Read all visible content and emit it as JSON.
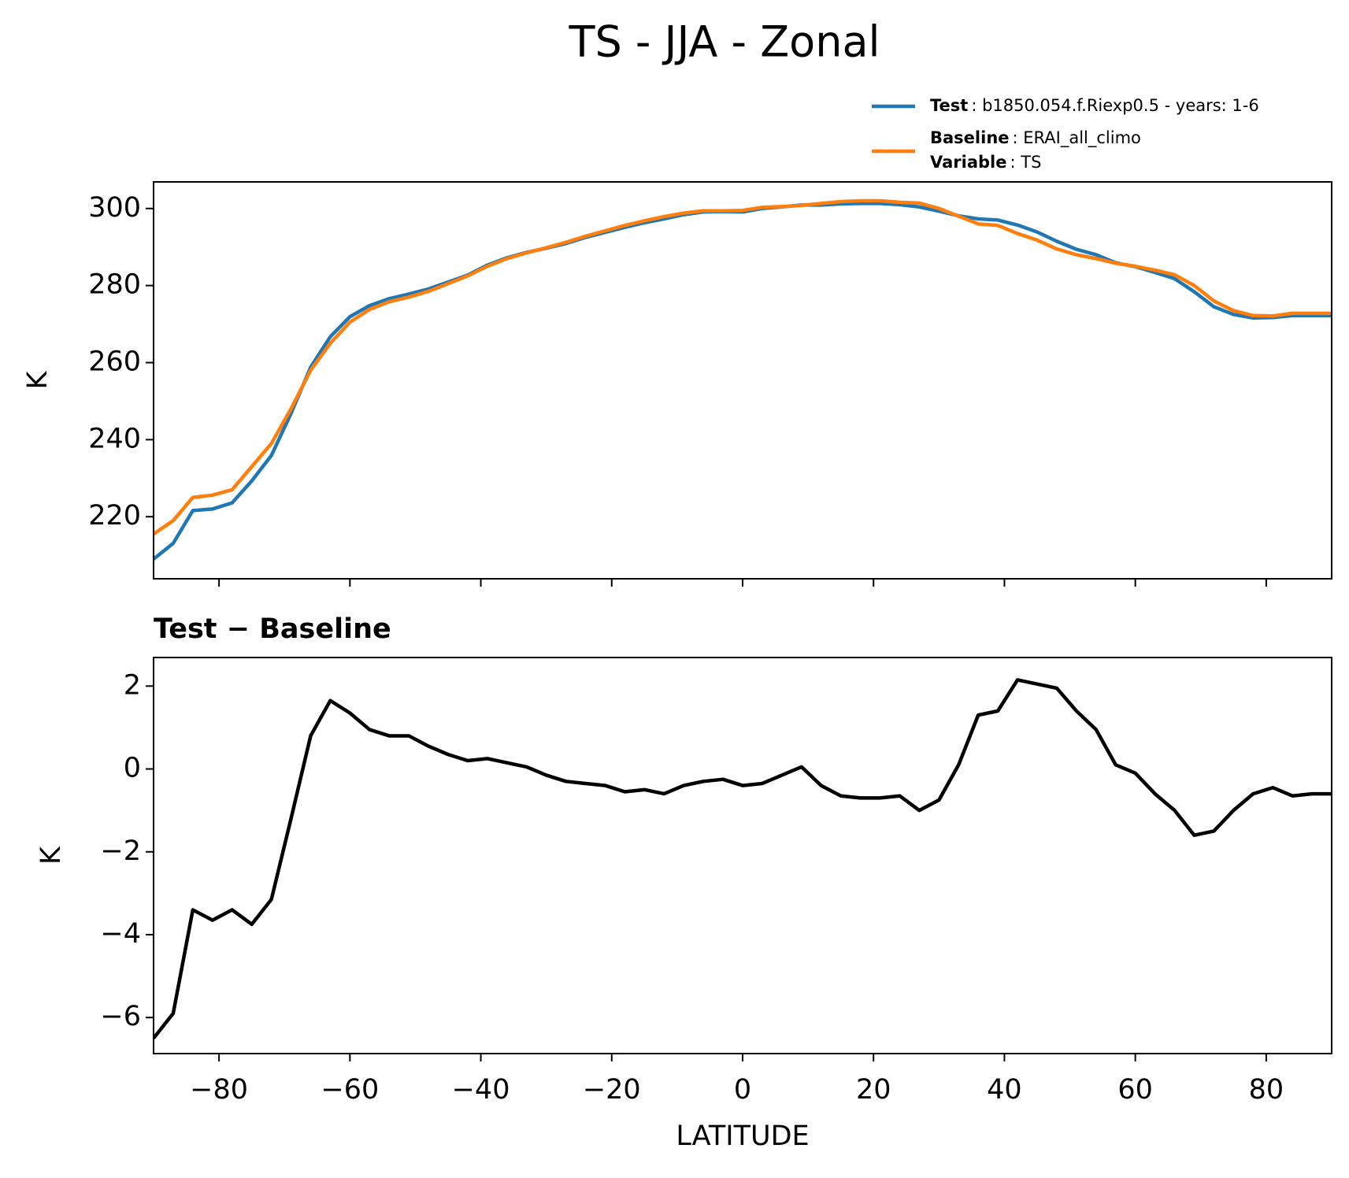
{
  "chart_data": [
    {
      "type": "line",
      "title": "TS - JJA - Zonal",
      "ylabel": "K",
      "x": [
        -90,
        -87,
        -84,
        -81,
        -78,
        -75,
        -72,
        -69,
        -66,
        -63,
        -60,
        -57,
        -54,
        -51,
        -48,
        -45,
        -42,
        -39,
        -36,
        -33,
        -30,
        -27,
        -24,
        -21,
        -18,
        -15,
        -12,
        -9,
        -6,
        -3,
        0,
        3,
        6,
        9,
        12,
        15,
        18,
        21,
        24,
        27,
        30,
        33,
        36,
        39,
        42,
        45,
        48,
        51,
        54,
        57,
        60,
        63,
        66,
        69,
        72,
        75,
        78,
        81,
        84,
        87,
        90
      ],
      "series": [
        {
          "name": "Test",
          "label": ": b1850.054.f.Riexp0.5 - years: 1-6",
          "color": "#1f77b4",
          "values": [
            209.0,
            213.1,
            221.6,
            222.0,
            223.6,
            229.3,
            235.9,
            246.8,
            258.8,
            266.7,
            271.9,
            274.8,
            276.6,
            277.8,
            279.1,
            280.9,
            282.7,
            285.3,
            287.2,
            288.6,
            289.7,
            290.9,
            292.5,
            293.8,
            295.1,
            296.3,
            297.3,
            298.4,
            299.1,
            299.2,
            299.1,
            300.0,
            300.4,
            300.9,
            300.9,
            301.2,
            301.3,
            301.3,
            301.0,
            300.4,
            299.3,
            298.1,
            297.3,
            297.0,
            295.7,
            293.9,
            291.5,
            289.4,
            288.0,
            285.9,
            284.9,
            283.4,
            281.8,
            278.4,
            274.5,
            272.5,
            271.6,
            271.7,
            272.2,
            272.2,
            272.2
          ]
        },
        {
          "name": "Baseline",
          "label": ": ERAI_all_climo",
          "color": "#ff7f0e",
          "values": [
            215.5,
            219,
            225,
            225.6,
            227,
            233,
            239,
            248,
            258,
            265,
            270.5,
            273.8,
            275.8,
            277,
            278.5,
            280.5,
            282.5,
            285,
            287,
            288.5,
            289.8,
            291.2,
            292.8,
            294.2,
            295.6,
            296.8,
            297.9,
            298.8,
            299.4,
            299.4,
            299.5,
            300.3,
            300.5,
            300.8,
            301.3,
            301.8,
            302,
            302,
            301.6,
            301.4,
            300,
            298,
            296,
            295.6,
            293.5,
            291.8,
            289.5,
            288,
            287,
            285.8,
            285,
            284,
            282.8,
            280,
            276,
            273.5,
            272.2,
            272.1,
            272.8,
            272.8,
            272.8
          ]
        }
      ],
      "legend_note": {
        "name": "Variable",
        "label": ": TS"
      },
      "legend": "upper right",
      "xlim": [
        -90,
        90
      ],
      "xticks": [
        -80,
        -60,
        -40,
        -20,
        0,
        20,
        40,
        60,
        80
      ],
      "ylim": [
        203.9,
        306.9
      ],
      "yticks": [
        220,
        240,
        260,
        280,
        300
      ]
    },
    {
      "type": "line",
      "title": "Test − Baseline",
      "xlabel": "LATITUDE",
      "ylabel": "K",
      "color": "#000000",
      "x": [
        -90,
        -87,
        -84,
        -81,
        -78,
        -75,
        -72,
        -69,
        -66,
        -63,
        -60,
        -57,
        -54,
        -51,
        -48,
        -45,
        -42,
        -39,
        -36,
        -33,
        -30,
        -27,
        -24,
        -21,
        -18,
        -15,
        -12,
        -9,
        -6,
        -3,
        0,
        3,
        6,
        9,
        12,
        15,
        18,
        21,
        24,
        27,
        30,
        33,
        36,
        39,
        42,
        45,
        48,
        51,
        54,
        57,
        60,
        63,
        66,
        69,
        72,
        75,
        78,
        81,
        84,
        87,
        90
      ],
      "values": [
        -6.5,
        -5.9,
        -3.4,
        -3.65,
        -3.4,
        -3.75,
        -3.15,
        -1.2,
        0.8,
        1.65,
        1.35,
        0.95,
        0.8,
        0.8,
        0.55,
        0.35,
        0.2,
        0.25,
        0.15,
        0.05,
        -0.15,
        -0.3,
        -0.35,
        -0.4,
        -0.55,
        -0.5,
        -0.6,
        -0.4,
        -0.3,
        -0.25,
        -0.4,
        -0.35,
        -0.15,
        0.05,
        -0.4,
        -0.65,
        -0.7,
        -0.7,
        -0.65,
        -1.0,
        -0.75,
        0.1,
        1.3,
        1.4,
        2.15,
        2.05,
        1.95,
        1.4,
        0.95,
        0.1,
        -0.1,
        -0.6,
        -1.0,
        -1.6,
        -1.5,
        -1.0,
        -0.6,
        -0.45,
        -0.65,
        -0.6,
        -0.6
      ],
      "xlim": [
        -90,
        90
      ],
      "xticks": [
        {
          "value": -80,
          "label": "−80"
        },
        {
          "value": -60,
          "label": "−60"
        },
        {
          "value": -40,
          "label": "−40"
        },
        {
          "value": -20,
          "label": "−20"
        },
        0,
        20,
        40,
        60,
        80
      ],
      "ylim": [
        -6.87,
        2.69
      ],
      "yticks": [
        {
          "value": -6,
          "label": "−6"
        },
        {
          "value": -4,
          "label": "−4"
        },
        {
          "value": -2,
          "label": "−2"
        },
        0,
        2
      ]
    }
  ]
}
